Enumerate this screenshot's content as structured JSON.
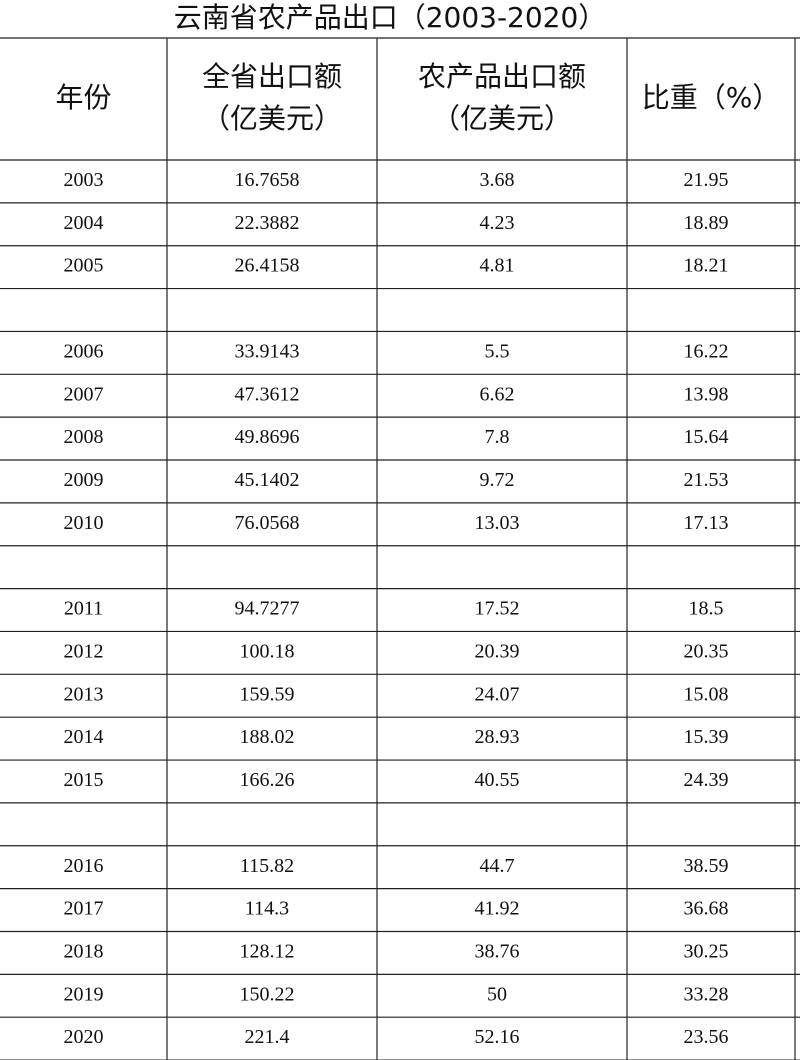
{
  "title": "云南省农产品出口（2003-2020）",
  "table": {
    "header": [
      [
        "年份"
      ],
      [
        "全省出口额",
        "（亿美元）"
      ],
      [
        "农产品出口额",
        "（亿美元）"
      ],
      [
        "比重（%）"
      ]
    ],
    "groups": [
      [
        [
          2003,
          16.7658,
          3.68,
          21.95
        ],
        [
          2004,
          22.3882,
          4.23,
          18.89
        ],
        [
          2005,
          26.4158,
          4.81,
          18.21
        ]
      ],
      [
        [
          2006,
          33.9143,
          5.5,
          16.22
        ],
        [
          2007,
          47.3612,
          6.62,
          13.98
        ],
        [
          2008,
          49.8696,
          7.8,
          15.64
        ],
        [
          2009,
          45.1402,
          9.72,
          21.53
        ],
        [
          2010,
          76.0568,
          13.03,
          17.13
        ]
      ],
      [
        [
          2011,
          94.7277,
          17.52,
          18.5
        ],
        [
          2012,
          100.18,
          20.39,
          20.35
        ],
        [
          2013,
          159.59,
          24.07,
          15.08
        ],
        [
          2014,
          188.02,
          28.93,
          15.39
        ],
        [
          2015,
          166.26,
          40.55,
          24.39
        ]
      ],
      [
        [
          2016,
          115.82,
          44.7,
          38.59
        ],
        [
          2017,
          114.3,
          41.92,
          36.68
        ],
        [
          2018,
          128.12,
          38.76,
          30.25
        ],
        [
          2019,
          150.22,
          50,
          33.28
        ],
        [
          2020,
          221.4,
          52.16,
          23.56
        ]
      ]
    ]
  }
}
